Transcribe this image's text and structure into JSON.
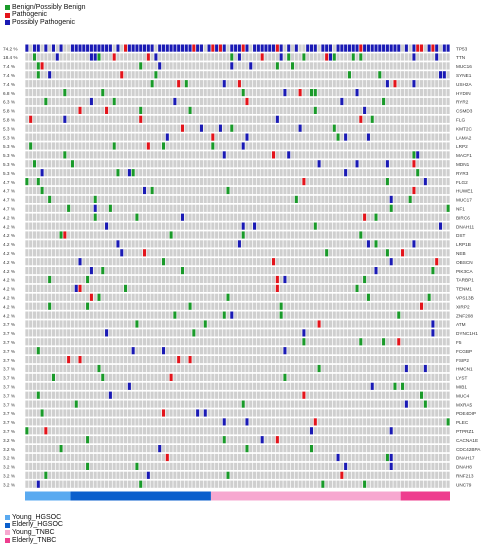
{
  "chart_data": {
    "type": "heatmap",
    "title": "",
    "mutation_legend": [
      {
        "label": "Benign/Possibly Benign",
        "color": "#1a9a2a"
      },
      {
        "label": "Pathogenic",
        "color": "#e3141b"
      },
      {
        "label": "Possibly Pathogenic",
        "color": "#1a1ab4"
      }
    ],
    "group_legend": [
      {
        "label": "Young_HGSOC",
        "color": "#5aaaf0",
        "count": 12
      },
      {
        "label": "Elderly_HGSOC",
        "color": "#0b5fcc",
        "count": 37
      },
      {
        "label": "Young_TNBC",
        "color": "#f7a8d0",
        "count": 50
      },
      {
        "label": "Elderly_TNBC",
        "color": "#ee3d8e",
        "count": 13
      }
    ],
    "sample_count": 112,
    "genes": [
      {
        "gene": "TP53",
        "pct": "74.2 %"
      },
      {
        "gene": "TTN",
        "pct": "18.4 %"
      },
      {
        "gene": "MUC16",
        "pct": "7.4 %"
      },
      {
        "gene": "SYNE1",
        "pct": "7.4 %"
      },
      {
        "gene": "USH2A",
        "pct": "7.4 %"
      },
      {
        "gene": "HYDIN",
        "pct": "6.8 %"
      },
      {
        "gene": "RYR2",
        "pct": "6.3 %"
      },
      {
        "gene": "CSMD3",
        "pct": "5.8 %"
      },
      {
        "gene": "FLG",
        "pct": "5.8 %"
      },
      {
        "gene": "KMT2C",
        "pct": "5.3 %"
      },
      {
        "gene": "LAMA2",
        "pct": "5.3 %"
      },
      {
        "gene": "LRP2",
        "pct": "5.3 %"
      },
      {
        "gene": "MACF1",
        "pct": "5.3 %"
      },
      {
        "gene": "MDN1",
        "pct": "5.3 %"
      },
      {
        "gene": "RYR3",
        "pct": "5.3 %"
      },
      {
        "gene": "FLG2",
        "pct": "4.7 %"
      },
      {
        "gene": "HUWE1",
        "pct": "4.7 %"
      },
      {
        "gene": "MUC17",
        "pct": "4.7 %"
      },
      {
        "gene": "NF1",
        "pct": "4.7 %"
      },
      {
        "gene": "BIRC6",
        "pct": "4.2 %"
      },
      {
        "gene": "DNAH11",
        "pct": "4.2 %"
      },
      {
        "gene": "DST",
        "pct": "4.2 %"
      },
      {
        "gene": "LRP1B",
        "pct": "4.2 %"
      },
      {
        "gene": "NEB",
        "pct": "4.2 %"
      },
      {
        "gene": "OBSCN",
        "pct": "4.2 %"
      },
      {
        "gene": "PIK3CA",
        "pct": "4.2 %"
      },
      {
        "gene": "TARBP1",
        "pct": "4.2 %"
      },
      {
        "gene": "TENM1",
        "pct": "4.2 %"
      },
      {
        "gene": "VPS13B",
        "pct": "4.2 %"
      },
      {
        "gene": "XIRP2",
        "pct": "4.2 %"
      },
      {
        "gene": "ZNF208",
        "pct": "4.2 %"
      },
      {
        "gene": "ATM",
        "pct": "3.7 %"
      },
      {
        "gene": "DYNC1H1",
        "pct": "3.7 %"
      },
      {
        "gene": "F5",
        "pct": "3.7 %"
      },
      {
        "gene": "FCGBP",
        "pct": "3.7 %"
      },
      {
        "gene": "FSIP2",
        "pct": "3.7 %"
      },
      {
        "gene": "HMCN1",
        "pct": "3.7 %"
      },
      {
        "gene": "LYST",
        "pct": "3.7 %"
      },
      {
        "gene": "MIB1",
        "pct": "3.7 %"
      },
      {
        "gene": "MUC4",
        "pct": "3.7 %"
      },
      {
        "gene": "MXRA5",
        "pct": "3.7 %"
      },
      {
        "gene": "PDE4DIP",
        "pct": "3.7 %"
      },
      {
        "gene": "PLEC",
        "pct": "3.7 %"
      },
      {
        "gene": "PTPRZ1",
        "pct": "3.7 %"
      },
      {
        "gene": "CACNA1E",
        "pct": "3.2 %"
      },
      {
        "gene": "CDC42BPA",
        "pct": "3.2 %"
      },
      {
        "gene": "DNAH17",
        "pct": "3.2 %"
      },
      {
        "gene": "DNAH8",
        "pct": "3.2 %"
      },
      {
        "gene": "RNF213",
        "pct": "3.2 %"
      },
      {
        "gene": "UNC79",
        "pct": "3.2 %"
      }
    ]
  }
}
